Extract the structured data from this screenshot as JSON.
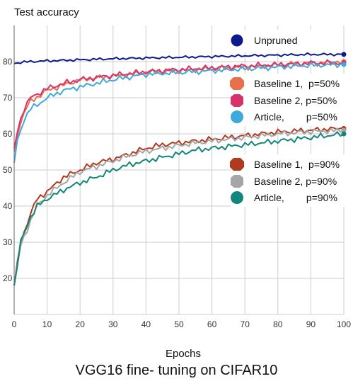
{
  "caption": "VGG16 fine- tuning on CIFAR10",
  "chart_data": {
    "type": "line",
    "title": "VGG16 fine- tuning on CIFAR10",
    "ylabel": "Test accuracy",
    "xlabel": "Epochs",
    "xlim": [
      0,
      100
    ],
    "ylim": [
      10,
      90
    ],
    "xticks": [
      "0",
      "10",
      "20",
      "30",
      "40",
      "50",
      "60",
      "70",
      "80",
      "90",
      "100"
    ],
    "yticks": [
      "20",
      "30",
      "40",
      "50",
      "60",
      "70",
      "80"
    ],
    "grid": true,
    "legend_position": "right",
    "series": [
      {
        "name": "Unpruned",
        "color": "#0d1a8c",
        "pts": [
          [
            0,
            79.5
          ],
          [
            2,
            79.8
          ],
          [
            5,
            80
          ],
          [
            10,
            80.2
          ],
          [
            20,
            80.5
          ],
          [
            30,
            80.8
          ],
          [
            40,
            81
          ],
          [
            50,
            81.2
          ],
          [
            60,
            81.4
          ],
          [
            70,
            81.6
          ],
          [
            80,
            81.8
          ],
          [
            90,
            82
          ],
          [
            100,
            82
          ]
        ]
      },
      {
        "name": "Baseline 1,  p=50%",
        "color": "#e8704a",
        "pts": [
          [
            0,
            55
          ],
          [
            1,
            60
          ],
          [
            3,
            66
          ],
          [
            5,
            69
          ],
          [
            10,
            72
          ],
          [
            15,
            73.5
          ],
          [
            20,
            75
          ],
          [
            30,
            76
          ],
          [
            40,
            77
          ],
          [
            50,
            77.5
          ],
          [
            60,
            78
          ],
          [
            70,
            78.5
          ],
          [
            80,
            79
          ],
          [
            90,
            79.5
          ],
          [
            100,
            80
          ]
        ]
      },
      {
        "name": "Baseline 2, p=50%",
        "color": "#d6336c",
        "pts": [
          [
            0,
            56
          ],
          [
            1,
            61
          ],
          [
            3,
            67
          ],
          [
            5,
            70
          ],
          [
            10,
            72.5
          ],
          [
            15,
            74
          ],
          [
            20,
            75
          ],
          [
            30,
            76.2
          ],
          [
            40,
            77.2
          ],
          [
            50,
            77.8
          ],
          [
            60,
            78.3
          ],
          [
            70,
            78.8
          ],
          [
            80,
            79.2
          ],
          [
            90,
            79.6
          ],
          [
            100,
            79.7
          ]
        ]
      },
      {
        "name": "Article,        p=50%",
        "color": "#3fa9de",
        "pts": [
          [
            0,
            52
          ],
          [
            1,
            58
          ],
          [
            3,
            64
          ],
          [
            5,
            67
          ],
          [
            7,
            68
          ],
          [
            10,
            70
          ],
          [
            15,
            72
          ],
          [
            20,
            73
          ],
          [
            30,
            75
          ],
          [
            40,
            76.5
          ],
          [
            50,
            77
          ],
          [
            60,
            77.5
          ],
          [
            70,
            78
          ],
          [
            80,
            78.5
          ],
          [
            90,
            79
          ],
          [
            100,
            79.2
          ]
        ]
      },
      {
        "name": "Baseline 1,  p=90%",
        "color": "#b03a1e",
        "pts": [
          [
            0,
            18
          ],
          [
            2,
            30
          ],
          [
            5,
            38
          ],
          [
            7,
            42
          ],
          [
            10,
            44
          ],
          [
            15,
            48
          ],
          [
            20,
            50
          ],
          [
            25,
            52
          ],
          [
            30,
            53
          ],
          [
            35,
            54.5
          ],
          [
            40,
            56
          ],
          [
            45,
            57
          ],
          [
            50,
            57.5
          ],
          [
            55,
            58
          ],
          [
            60,
            58.5
          ],
          [
            65,
            59
          ],
          [
            70,
            59.5
          ],
          [
            75,
            60
          ],
          [
            80,
            60.5
          ],
          [
            85,
            60.8
          ],
          [
            90,
            61
          ],
          [
            95,
            61.3
          ],
          [
            100,
            61.5
          ]
        ]
      },
      {
        "name": "Baseline 2, p=90%",
        "color": "#a6a6a6",
        "pts": [
          [
            0,
            18
          ],
          [
            2,
            29
          ],
          [
            5,
            36
          ],
          [
            7,
            40
          ],
          [
            10,
            43
          ],
          [
            15,
            46.5
          ],
          [
            20,
            49.5
          ],
          [
            25,
            51
          ],
          [
            30,
            52.5
          ],
          [
            35,
            54
          ],
          [
            40,
            55.2
          ],
          [
            45,
            56
          ],
          [
            50,
            56.8
          ],
          [
            55,
            57.5
          ],
          [
            60,
            58
          ],
          [
            65,
            58.5
          ],
          [
            70,
            59
          ],
          [
            75,
            59.5
          ],
          [
            80,
            60
          ],
          [
            85,
            60.3
          ],
          [
            90,
            60.6
          ],
          [
            95,
            60.8
          ],
          [
            100,
            61
          ]
        ]
      },
      {
        "name": "Article,        p=90%",
        "color": "#12867a",
        "pts": [
          [
            0,
            18
          ],
          [
            2,
            30
          ],
          [
            5,
            37
          ],
          [
            7,
            40
          ],
          [
            10,
            42
          ],
          [
            15,
            44.5
          ],
          [
            20,
            46.5
          ],
          [
            25,
            48
          ],
          [
            30,
            50
          ],
          [
            35,
            51.5
          ],
          [
            40,
            52.5
          ],
          [
            45,
            53.5
          ],
          [
            50,
            54.5
          ],
          [
            55,
            55.5
          ],
          [
            60,
            56
          ],
          [
            65,
            56.5
          ],
          [
            70,
            57
          ],
          [
            75,
            57.5
          ],
          [
            80,
            58
          ],
          [
            85,
            58.5
          ],
          [
            90,
            59
          ],
          [
            95,
            59.5
          ],
          [
            100,
            60
          ]
        ]
      }
    ]
  }
}
